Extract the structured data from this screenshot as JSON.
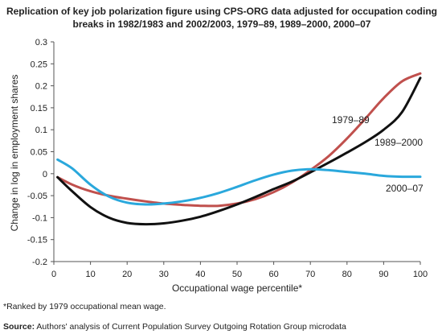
{
  "chart_data": {
    "type": "line",
    "title": "Replication of key job polarization figure using CPS-ORG data adjusted for occupation coding breaks in 1982/1983 and 2002/2003, 1979–89, 1989–2000, 2000–07",
    "xlabel": "Occupational wage percentile*",
    "ylabel": "Change in log in employment shares",
    "xlim": [
      0,
      100
    ],
    "ylim": [
      -0.2,
      0.3
    ],
    "xticks": [
      "0",
      "10",
      "20",
      "30",
      "40",
      "50",
      "60",
      "70",
      "80",
      "90",
      "100"
    ],
    "yticks": [
      "-0.2",
      "-0.15",
      "-0.1",
      "-0.05",
      "0",
      "0.05",
      "0.1",
      "0.15",
      "0.2",
      "0.25",
      "0.3"
    ],
    "grid": false,
    "series": [
      {
        "name": "1979–89",
        "color": "#c0504d",
        "x": [
          1,
          5,
          10,
          15,
          20,
          25,
          30,
          35,
          40,
          45,
          50,
          55,
          60,
          65,
          70,
          75,
          80,
          85,
          90,
          95,
          100
        ],
        "y": [
          -0.008,
          -0.025,
          -0.04,
          -0.05,
          -0.057,
          -0.063,
          -0.068,
          -0.071,
          -0.073,
          -0.073,
          -0.068,
          -0.058,
          -0.042,
          -0.02,
          0.008,
          0.04,
          0.08,
          0.125,
          0.172,
          0.21,
          0.228
        ]
      },
      {
        "name": "1989–2000",
        "color": "#111111",
        "x": [
          1,
          5,
          10,
          15,
          20,
          25,
          30,
          35,
          40,
          45,
          50,
          55,
          60,
          65,
          70,
          75,
          80,
          85,
          90,
          95,
          100
        ],
        "y": [
          -0.008,
          -0.04,
          -0.076,
          -0.1,
          -0.112,
          -0.115,
          -0.113,
          -0.107,
          -0.098,
          -0.085,
          -0.07,
          -0.053,
          -0.035,
          -0.018,
          0.003,
          0.025,
          0.048,
          0.072,
          0.1,
          0.14,
          0.218
        ]
      },
      {
        "name": "2000–07",
        "color": "#2aa8dc",
        "x": [
          1,
          5,
          10,
          15,
          20,
          25,
          30,
          35,
          40,
          45,
          50,
          55,
          60,
          65,
          70,
          75,
          80,
          85,
          90,
          95,
          100
        ],
        "y": [
          0.032,
          0.012,
          -0.025,
          -0.052,
          -0.066,
          -0.07,
          -0.068,
          -0.063,
          -0.055,
          -0.044,
          -0.03,
          -0.015,
          -0.002,
          0.007,
          0.01,
          0.008,
          0.004,
          0.0,
          -0.005,
          -0.007,
          -0.007
        ]
      }
    ]
  },
  "footnote": "*Ranked by 1979 occupational mean wage.",
  "source_label": "Source:",
  "source_text": " Authors' analysis of Current Population Survey Outgoing Rotation Group microdata"
}
